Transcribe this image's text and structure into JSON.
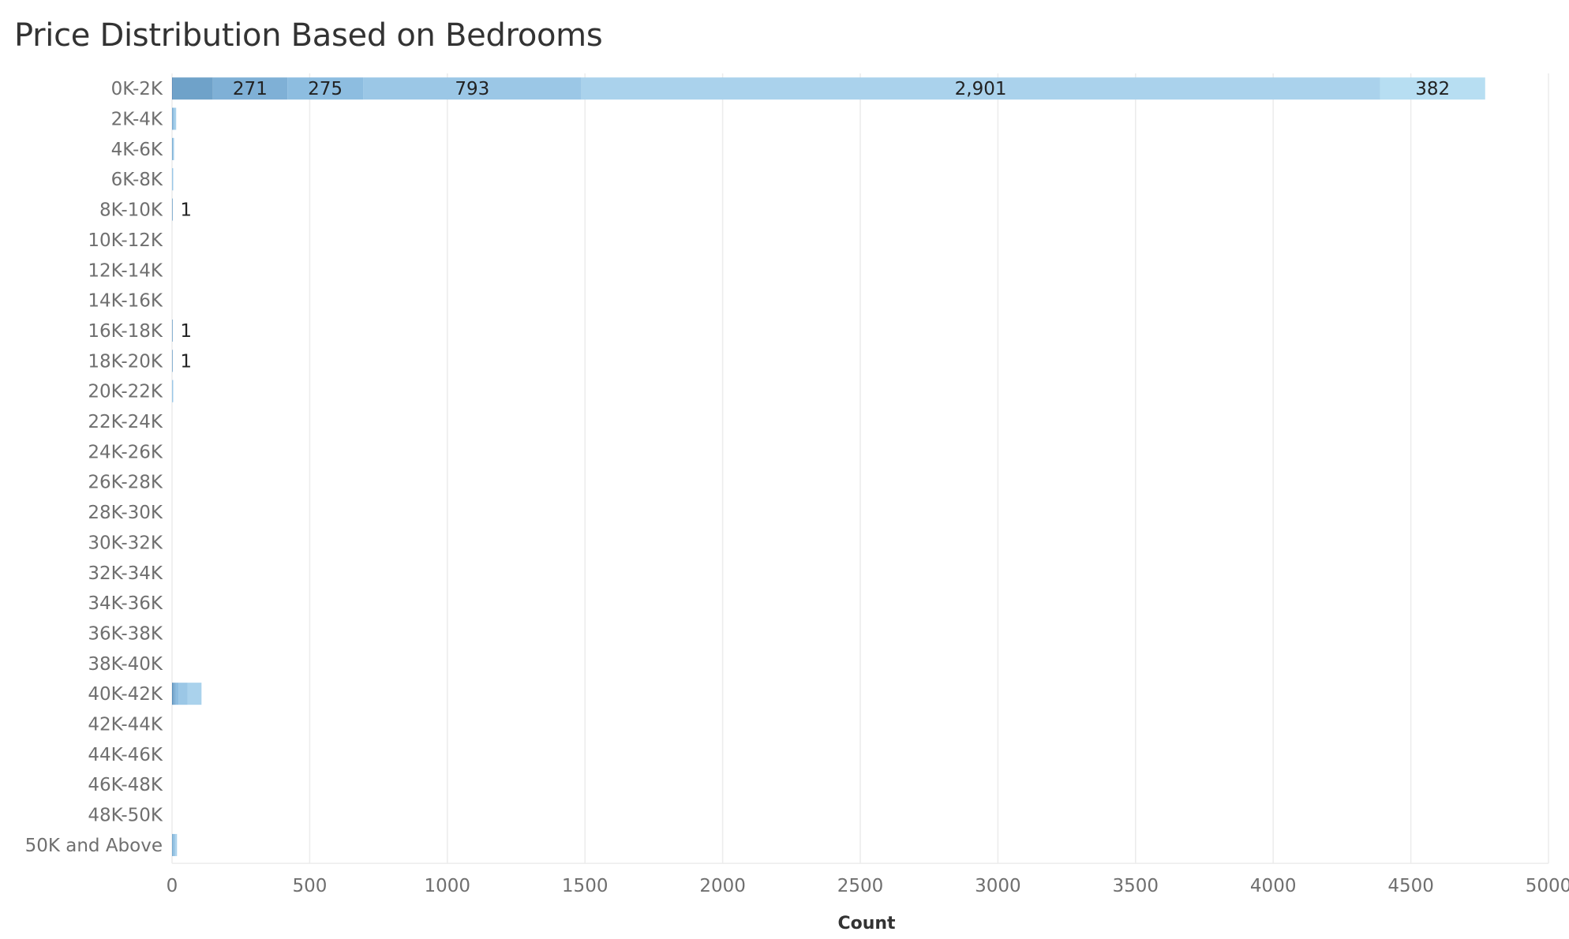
{
  "chart_data": {
    "type": "bar",
    "orientation": "horizontal",
    "stacked": true,
    "title": "Price Distribution Based on Bedrooms",
    "xlabel": "Count",
    "ylabel": "",
    "xlim": [
      0,
      5000
    ],
    "xticks": [
      "0",
      "500",
      "1000",
      "1500",
      "2000",
      "2500",
      "3000",
      "3500",
      "4000",
      "4500",
      "5000"
    ],
    "grid": "vertical",
    "legend": "none",
    "categories": [
      "0K-2K",
      "2K-4K",
      "4K-6K",
      "6K-8K",
      "8K-10K",
      "10K-12K",
      "12K-14K",
      "14K-16K",
      "16K-18K",
      "18K-20K",
      "20K-22K",
      "22K-24K",
      "24K-26K",
      "26K-28K",
      "28K-30K",
      "30K-32K",
      "32K-34K",
      "34K-36K",
      "36K-38K",
      "38K-40K",
      "40K-42K",
      "42K-44K",
      "44K-46K",
      "46K-48K",
      "48K-50K",
      "50K and Above"
    ],
    "series": [
      {
        "color": "#5b8fbc",
        "values": [
          5,
          0,
          0,
          0,
          0,
          0,
          0,
          0,
          0,
          0,
          0,
          0,
          0,
          0,
          0,
          0,
          0,
          0,
          0,
          0,
          3,
          0,
          0,
          0,
          0,
          0
        ]
      },
      {
        "color": "#6fa2c9",
        "values": [
          143,
          1,
          1,
          0,
          1,
          0,
          0,
          0,
          1,
          1,
          0,
          0,
          0,
          0,
          0,
          0,
          0,
          0,
          0,
          0,
          5,
          0,
          0,
          0,
          0,
          1
        ]
      },
      {
        "color": "#7fb0d6",
        "values": [
          271,
          2,
          1,
          0,
          0,
          0,
          0,
          0,
          0,
          0,
          0,
          0,
          0,
          0,
          0,
          0,
          0,
          0,
          0,
          0,
          6,
          0,
          0,
          0,
          0,
          2
        ]
      },
      {
        "color": "#8dbde0",
        "values": [
          275,
          3,
          1,
          1,
          0,
          0,
          0,
          0,
          0,
          0,
          1,
          0,
          0,
          0,
          0,
          0,
          0,
          0,
          0,
          0,
          10,
          0,
          0,
          0,
          0,
          4
        ]
      },
      {
        "color": "#9bc7e6",
        "values": [
          793,
          4,
          2,
          1,
          0,
          0,
          0,
          0,
          0,
          0,
          1,
          0,
          0,
          0,
          0,
          0,
          0,
          0,
          0,
          0,
          32,
          0,
          0,
          0,
          0,
          5
        ]
      },
      {
        "color": "#aad2ec",
        "values": [
          2901,
          5,
          2,
          1,
          0,
          0,
          0,
          0,
          0,
          0,
          1,
          0,
          0,
          0,
          0,
          0,
          0,
          0,
          0,
          0,
          51,
          0,
          0,
          0,
          0,
          6
        ]
      },
      {
        "color": "#b7def2",
        "values": [
          382,
          0,
          0,
          0,
          0,
          0,
          0,
          0,
          0,
          0,
          0,
          0,
          0,
          0,
          0,
          0,
          0,
          0,
          0,
          0,
          0,
          0,
          0,
          0,
          0,
          0
        ]
      }
    ],
    "data_labels": [
      {
        "category": "0K-2K",
        "series": 2,
        "text": "271"
      },
      {
        "category": "0K-2K",
        "series": 3,
        "text": "275"
      },
      {
        "category": "0K-2K",
        "series": 4,
        "text": "793"
      },
      {
        "category": "0K-2K",
        "series": 5,
        "text": "2,901"
      },
      {
        "category": "0K-2K",
        "series": 6,
        "text": "382"
      },
      {
        "category": "8K-10K",
        "series": -1,
        "text": "1"
      },
      {
        "category": "16K-18K",
        "series": -1,
        "text": "1"
      },
      {
        "category": "18K-20K",
        "series": -1,
        "text": "1"
      }
    ]
  }
}
